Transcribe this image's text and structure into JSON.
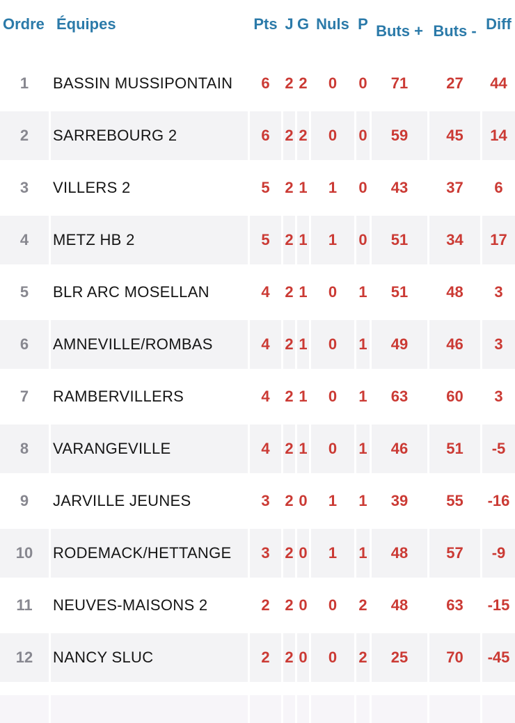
{
  "table": {
    "columns": [
      {
        "key": "ordre",
        "label": "Ordre"
      },
      {
        "key": "team",
        "label": "Équipes"
      },
      {
        "key": "pts",
        "label": "Pts"
      },
      {
        "key": "j",
        "label": "J"
      },
      {
        "key": "g",
        "label": "G"
      },
      {
        "key": "nuls",
        "label": "Nuls"
      },
      {
        "key": "p",
        "label": "P"
      },
      {
        "key": "buts_plus",
        "label": "Buts +"
      },
      {
        "key": "buts_minus",
        "label": "Buts -"
      },
      {
        "key": "diff",
        "label": "Diff"
      }
    ],
    "rows": [
      {
        "ordre": "1",
        "team": "BASSIN MUSSIPONTAIN",
        "pts": "6",
        "j": "2",
        "g": "2",
        "nuls": "0",
        "p": "0",
        "buts_plus": "71",
        "buts_minus": "27",
        "diff": "44"
      },
      {
        "ordre": "2",
        "team": "SARREBOURG 2",
        "pts": "6",
        "j": "2",
        "g": "2",
        "nuls": "0",
        "p": "0",
        "buts_plus": "59",
        "buts_minus": "45",
        "diff": "14"
      },
      {
        "ordre": "3",
        "team": "VILLERS 2",
        "pts": "5",
        "j": "2",
        "g": "1",
        "nuls": "1",
        "p": "0",
        "buts_plus": "43",
        "buts_minus": "37",
        "diff": "6"
      },
      {
        "ordre": "4",
        "team": "METZ HB 2",
        "pts": "5",
        "j": "2",
        "g": "1",
        "nuls": "1",
        "p": "0",
        "buts_plus": "51",
        "buts_minus": "34",
        "diff": "17"
      },
      {
        "ordre": "5",
        "team": "BLR ARC MOSELLAN",
        "pts": "4",
        "j": "2",
        "g": "1",
        "nuls": "0",
        "p": "1",
        "buts_plus": "51",
        "buts_minus": "48",
        "diff": "3"
      },
      {
        "ordre": "6",
        "team": "AMNEVILLE/ROMBAS",
        "pts": "4",
        "j": "2",
        "g": "1",
        "nuls": "0",
        "p": "1",
        "buts_plus": "49",
        "buts_minus": "46",
        "diff": "3"
      },
      {
        "ordre": "7",
        "team": "RAMBERVILLERS",
        "pts": "4",
        "j": "2",
        "g": "1",
        "nuls": "0",
        "p": "1",
        "buts_plus": "63",
        "buts_minus": "60",
        "diff": "3"
      },
      {
        "ordre": "8",
        "team": "VARANGEVILLE",
        "pts": "4",
        "j": "2",
        "g": "1",
        "nuls": "0",
        "p": "1",
        "buts_plus": "46",
        "buts_minus": "51",
        "diff": "-5"
      },
      {
        "ordre": "9",
        "team": "JARVILLE JEUNES",
        "pts": "3",
        "j": "2",
        "g": "0",
        "nuls": "1",
        "p": "1",
        "buts_plus": "39",
        "buts_minus": "55",
        "diff": "-16"
      },
      {
        "ordre": "10",
        "team": "RODEMACK/HETTANGE",
        "pts": "3",
        "j": "2",
        "g": "0",
        "nuls": "1",
        "p": "1",
        "buts_plus": "48",
        "buts_minus": "57",
        "diff": "-9"
      },
      {
        "ordre": "11",
        "team": "NEUVES-MAISONS 2",
        "pts": "2",
        "j": "2",
        "g": "0",
        "nuls": "0",
        "p": "2",
        "buts_plus": "48",
        "buts_minus": "63",
        "diff": "-15"
      },
      {
        "ordre": "12",
        "team": "NANCY SLUC",
        "pts": "2",
        "j": "2",
        "g": "0",
        "nuls": "0",
        "p": "2",
        "buts_plus": "25",
        "buts_minus": "70",
        "diff": "-45"
      }
    ]
  },
  "colors": {
    "header_text": "#2b7aa9",
    "value_text": "#cb3a34",
    "rank_text": "#87878f",
    "team_text": "#151515",
    "row_shade": "#f3f3f5",
    "background": "#ffffff"
  }
}
